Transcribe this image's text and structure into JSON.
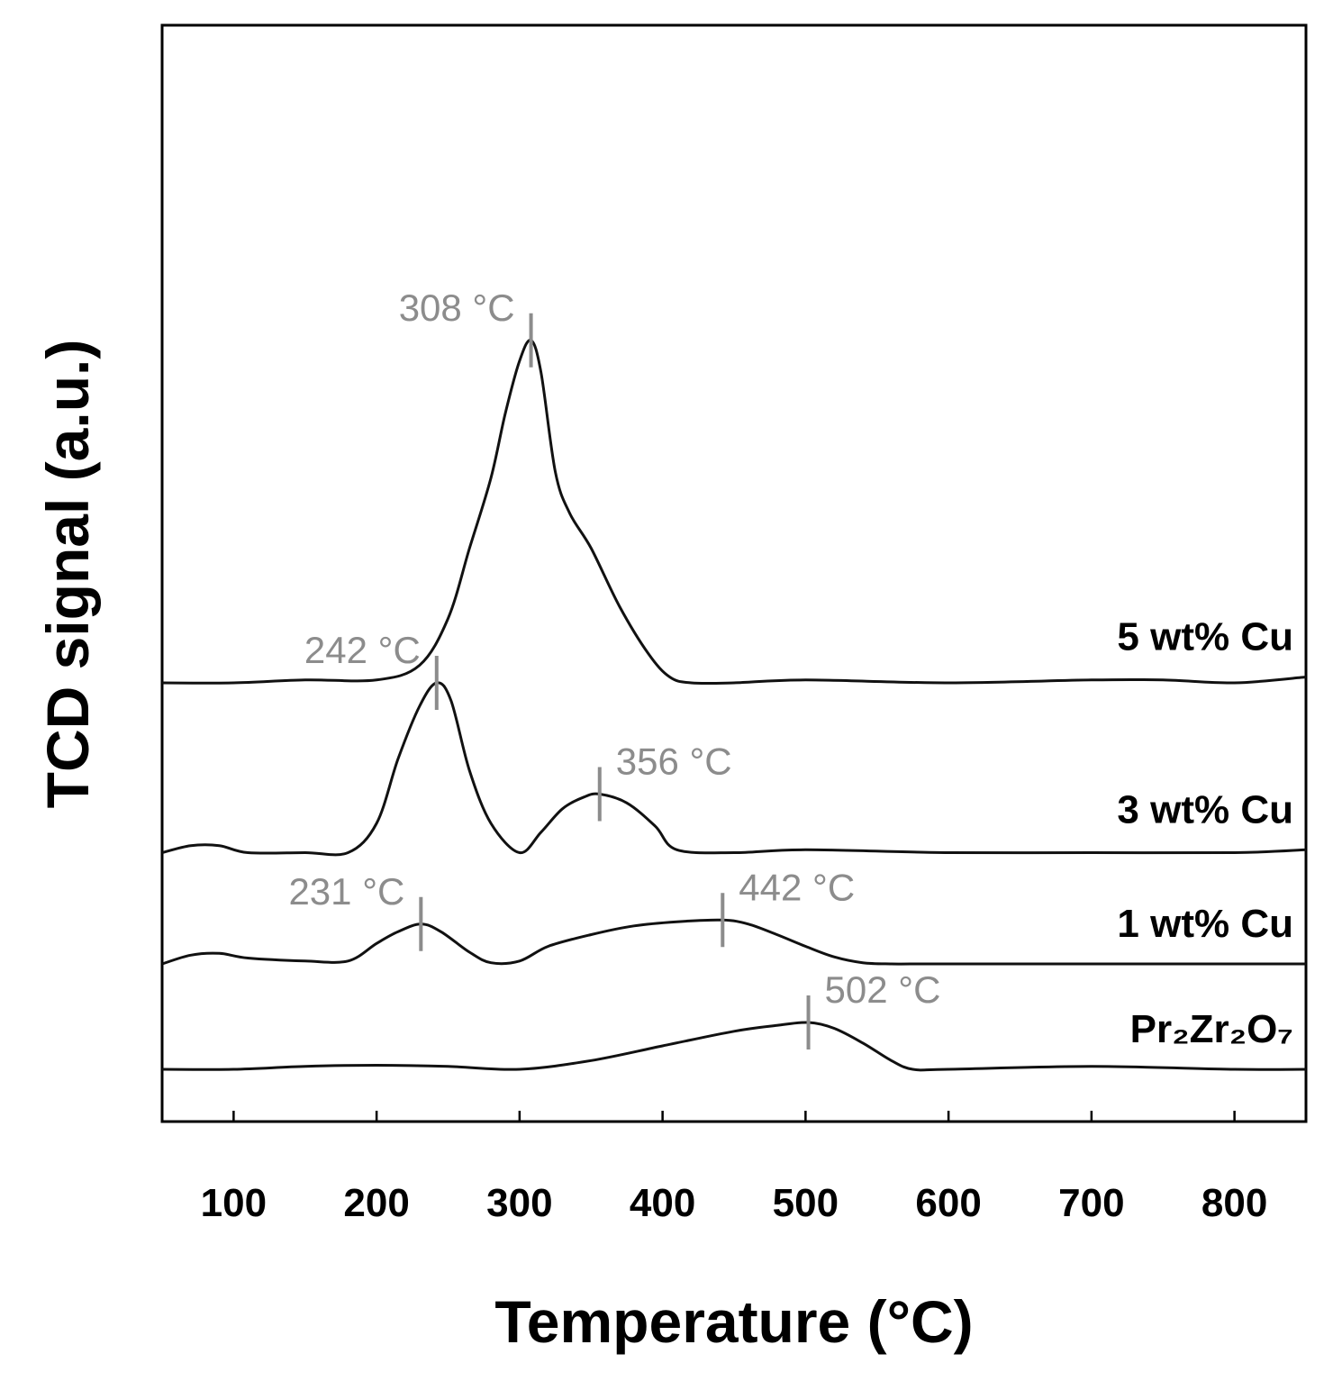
{
  "chart_data": {
    "type": "line",
    "xlabel": "Temperature (°C)",
    "ylabel": "TCD signal (a.u.)",
    "xlim": [
      50,
      850
    ],
    "xticks": [
      100,
      200,
      300,
      400,
      500,
      600,
      700,
      800
    ],
    "grid": false,
    "y_units": "a.u. (stacked, baseline-offset traces; 0 = trace baseline)",
    "series": [
      {
        "name": "5 wt% Cu",
        "label": "5 wt% Cu",
        "offset": 6.6,
        "x": [
          50,
          100,
          150,
          200,
          230,
          250,
          265,
          280,
          290,
          300,
          308,
          315,
          325,
          335,
          350,
          370,
          390,
          405,
          420,
          450,
          500,
          600,
          700,
          750,
          800,
          850
        ],
        "y": [
          0.0,
          0.0,
          0.05,
          0.05,
          0.3,
          1.1,
          2.3,
          3.5,
          4.6,
          5.5,
          5.85,
          5.3,
          3.6,
          2.9,
          2.3,
          1.3,
          0.5,
          0.1,
          0.0,
          0.0,
          0.05,
          0.0,
          0.05,
          0.05,
          0.0,
          0.1
        ],
        "peaks": [
          {
            "x": 308,
            "label": "308 °C",
            "side": "left"
          }
        ]
      },
      {
        "name": "3 wt% Cu",
        "label": "3 wt% Cu",
        "offset": 3.7,
        "x": [
          50,
          70,
          90,
          110,
          150,
          180,
          200,
          215,
          230,
          242,
          252,
          265,
          280,
          300,
          315,
          330,
          345,
          356,
          375,
          395,
          410,
          450,
          500,
          600,
          700,
          800,
          850
        ],
        "y": [
          0.0,
          0.12,
          0.12,
          0.0,
          0.0,
          0.0,
          0.5,
          1.6,
          2.5,
          2.9,
          2.6,
          1.4,
          0.5,
          0.0,
          0.35,
          0.75,
          0.95,
          1.0,
          0.85,
          0.45,
          0.05,
          0.0,
          0.05,
          0.0,
          0.0,
          0.0,
          0.05
        ],
        "peaks": [
          {
            "x": 242,
            "label": "242 °C",
            "side": "left"
          },
          {
            "x": 356,
            "label": "356 °C",
            "side": "right"
          }
        ]
      },
      {
        "name": "1 wt% Cu",
        "label": "1 wt% Cu",
        "offset": 1.8,
        "x": [
          50,
          70,
          90,
          110,
          150,
          180,
          200,
          215,
          231,
          245,
          265,
          280,
          300,
          320,
          350,
          380,
          410,
          442,
          460,
          480,
          500,
          520,
          540,
          560,
          580,
          600,
          700,
          850
        ],
        "y": [
          0.0,
          0.15,
          0.18,
          0.1,
          0.05,
          0.05,
          0.35,
          0.55,
          0.68,
          0.55,
          0.2,
          0.02,
          0.05,
          0.3,
          0.5,
          0.65,
          0.72,
          0.75,
          0.68,
          0.5,
          0.3,
          0.12,
          0.02,
          0.0,
          0.0,
          0.0,
          0.0,
          0.0
        ],
        "peaks": [
          {
            "x": 231,
            "label": "231 °C",
            "side": "left"
          },
          {
            "x": 442,
            "label": "442 °C",
            "side": "right"
          }
        ]
      },
      {
        "name": "Pr2Zr2O7",
        "label": "Pr₂Zr₂O₇",
        "offset": 0.0,
        "x": [
          50,
          100,
          150,
          200,
          250,
          300,
          350,
          400,
          450,
          480,
          502,
          520,
          540,
          560,
          575,
          600,
          700,
          800,
          850
        ],
        "y": [
          0.0,
          0.0,
          0.05,
          0.07,
          0.05,
          0.0,
          0.15,
          0.4,
          0.65,
          0.75,
          0.8,
          0.7,
          0.45,
          0.15,
          0.0,
          0.0,
          0.05,
          0.0,
          0.0
        ],
        "peaks": [
          {
            "x": 502,
            "label": "502 °C",
            "side": "right"
          }
        ]
      }
    ]
  }
}
